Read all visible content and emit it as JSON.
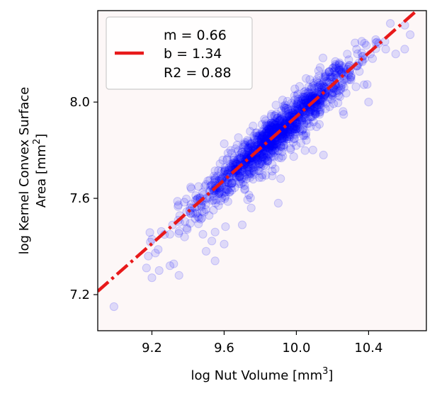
{
  "chart_data": {
    "type": "scatter",
    "xlabel": "log Nut Volume [mm",
    "xlabel_sup": "3",
    "xlabel_tail": "]",
    "ylabel_line1": "log Kernel Convex Surface",
    "ylabel_line2": "Area [mm",
    "ylabel_sup": "2",
    "ylabel_tail": "]",
    "xlim": [
      8.9,
      10.72
    ],
    "ylim": [
      7.05,
      8.38
    ],
    "xticks": [
      9.2,
      9.6,
      10.0,
      10.4
    ],
    "xtick_labels": [
      "9.2",
      "9.6",
      "10.0",
      "10.4"
    ],
    "yticks": [
      7.2,
      7.6,
      8.0
    ],
    "ytick_labels": [
      "7.2",
      "7.6",
      "8.0"
    ],
    "grid": false,
    "background": "#fdf7f7",
    "point_color": "#0000ff",
    "point_opacity": 0.12,
    "fit_line": {
      "slope": 0.66,
      "intercept": 1.34,
      "color": "#e8191a",
      "style": "dash-dot"
    },
    "legend": {
      "placement": "top-left",
      "lines": [
        "m = 0.66",
        "b = 1.34",
        "R2 = 0.88"
      ]
    },
    "n_points": 1300,
    "outliers": [
      [
        8.99,
        7.15
      ],
      [
        9.2,
        7.43
      ],
      [
        9.27,
        7.45
      ],
      [
        9.18,
        7.36
      ],
      [
        9.24,
        7.3
      ],
      [
        9.3,
        7.32
      ],
      [
        9.35,
        7.28
      ],
      [
        9.2,
        7.27
      ],
      [
        9.55,
        7.34
      ],
      [
        9.5,
        7.38
      ],
      [
        9.6,
        7.41
      ],
      [
        9.7,
        7.49
      ],
      [
        9.55,
        7.46
      ],
      [
        10.15,
        7.78
      ],
      [
        10.4,
        8.0
      ],
      [
        10.55,
        8.2
      ],
      [
        10.6,
        8.22
      ],
      [
        10.63,
        8.28
      ],
      [
        9.9,
        7.58
      ],
      [
        9.75,
        7.56
      ]
    ]
  }
}
